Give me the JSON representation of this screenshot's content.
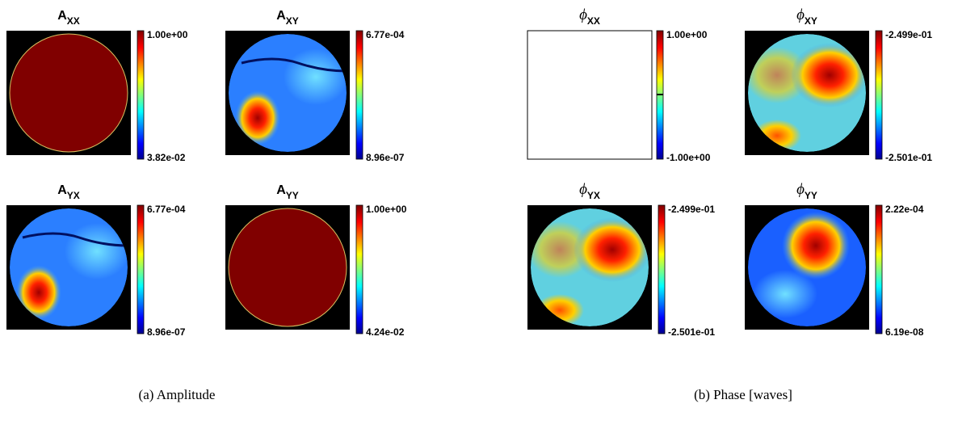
{
  "panels": [
    {
      "title": "A",
      "subscript": "XX",
      "max": "1.00e+00",
      "min": "3.82e-02"
    },
    {
      "title": "A",
      "subscript": "XY",
      "max": "6.77e-04",
      "min": "8.96e-07"
    },
    {
      "title": "A",
      "subscript": "YX",
      "max": "6.77e-04",
      "min": "8.96e-07"
    },
    {
      "title": "A",
      "subscript": "YY",
      "max": "1.00e+00",
      "min": "4.24e-02"
    },
    {
      "title": "ϕ",
      "subscript": "XX",
      "max": "1.00e+00",
      "min": "-1.00e+00"
    },
    {
      "title": "ϕ",
      "subscript": "XY",
      "max": "-2.499e-01",
      "min": "-2.501e-01"
    },
    {
      "title": "ϕ",
      "subscript": "YX",
      "max": "-2.499e-01",
      "min": "-2.501e-01"
    },
    {
      "title": "ϕ",
      "subscript": "YY",
      "max": "2.22e-04",
      "min": "6.19e-08"
    }
  ],
  "captions": [
    "(a) Amplitude",
    "(b) Phase [waves]"
  ]
}
